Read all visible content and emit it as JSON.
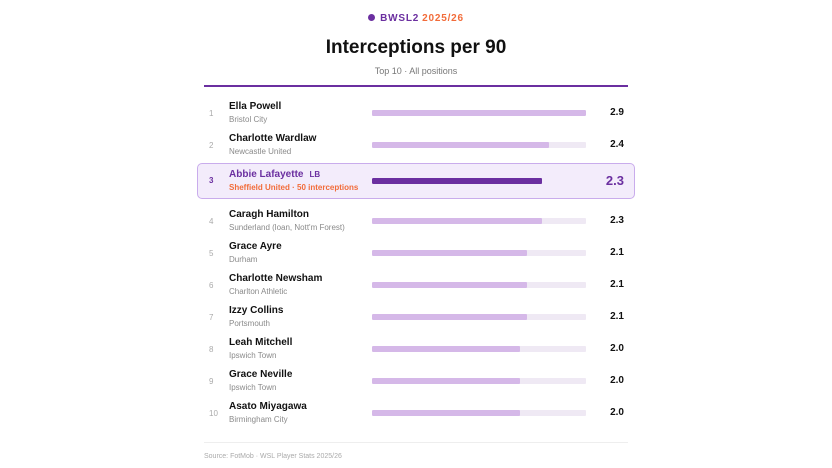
{
  "header": {
    "league": "BWSL2",
    "season": "2025/26",
    "title": "Interceptions per 90",
    "subtitle": "Top 10 · All positions"
  },
  "colors": {
    "accent": "#6b2fa0",
    "season": "#f26c3a",
    "bar": "#d5b8e8",
    "bar_highlight": "#6b2fa0",
    "track": "#efe9f4"
  },
  "chart_data": {
    "type": "bar",
    "orientation": "horizontal",
    "title": "Interceptions per 90",
    "subtitle": "Top 10 · All positions",
    "xlim": [
      0,
      2.9
    ],
    "grid": false,
    "rows": [
      {
        "rank": "1",
        "name": "Ella Powell",
        "club": "Bristol City",
        "value": 2.9,
        "label": "2.9"
      },
      {
        "rank": "2",
        "name": "Charlotte Wardlaw",
        "club": "Newcastle United",
        "value": 2.4,
        "label": "2.4"
      },
      {
        "rank": "3",
        "name": "Abbie Lafayette",
        "position": "LB",
        "club": "Sheffield United · 50 interceptions",
        "value": 2.3,
        "label": "2.3",
        "highlight": true
      },
      {
        "rank": "4",
        "name": "Caragh Hamilton",
        "club": "Sunderland (loan, Nott'm Forest)",
        "value": 2.3,
        "label": "2.3"
      },
      {
        "rank": "5",
        "name": "Grace Ayre",
        "club": "Durham",
        "value": 2.1,
        "label": "2.1"
      },
      {
        "rank": "6",
        "name": "Charlotte Newsham",
        "club": "Charlton Athletic",
        "value": 2.1,
        "label": "2.1"
      },
      {
        "rank": "7",
        "name": "Izzy Collins",
        "club": "Portsmouth",
        "value": 2.1,
        "label": "2.1"
      },
      {
        "rank": "8",
        "name": "Leah Mitchell",
        "club": "Ipswich Town",
        "value": 2.0,
        "label": "2.0"
      },
      {
        "rank": "9",
        "name": "Grace Neville",
        "club": "Ipswich Town",
        "value": 2.0,
        "label": "2.0"
      },
      {
        "rank": "10",
        "name": "Asato Miyagawa",
        "club": "Birmingham City",
        "value": 2.0,
        "label": "2.0"
      }
    ]
  },
  "footer": {
    "source": "Source: FotMob · WSL Player Stats 2025/26"
  }
}
